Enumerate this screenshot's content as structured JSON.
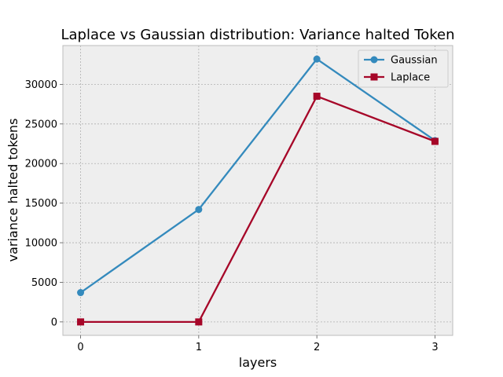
{
  "chart_data": {
    "type": "line",
    "title": "Laplace vs Gaussian distribution: Variance halted Token",
    "xlabel": "layers",
    "ylabel": "variance halted tokens",
    "x": [
      0,
      1,
      2,
      3
    ],
    "xticks": [
      "0",
      "1",
      "2",
      "3"
    ],
    "yticks": [
      "0",
      "5000",
      "10000",
      "15000",
      "20000",
      "25000",
      "30000"
    ],
    "xlim": [
      -0.15,
      3.15
    ],
    "ylim": [
      -1700,
      34900
    ],
    "grid": true,
    "legend_position": "top-right",
    "series": [
      {
        "name": "Gaussian",
        "values": [
          3700,
          14200,
          33200,
          22900
        ],
        "color": "#348abd",
        "marker": "circle"
      },
      {
        "name": "Laplace",
        "values": [
          0,
          0,
          28500,
          22800
        ],
        "color": "#a60628",
        "marker": "square"
      }
    ],
    "style": {
      "plot_background": "#eeeeee",
      "grid_color": "#b0b0b0",
      "axes_edge": "#bcbcbc"
    }
  }
}
